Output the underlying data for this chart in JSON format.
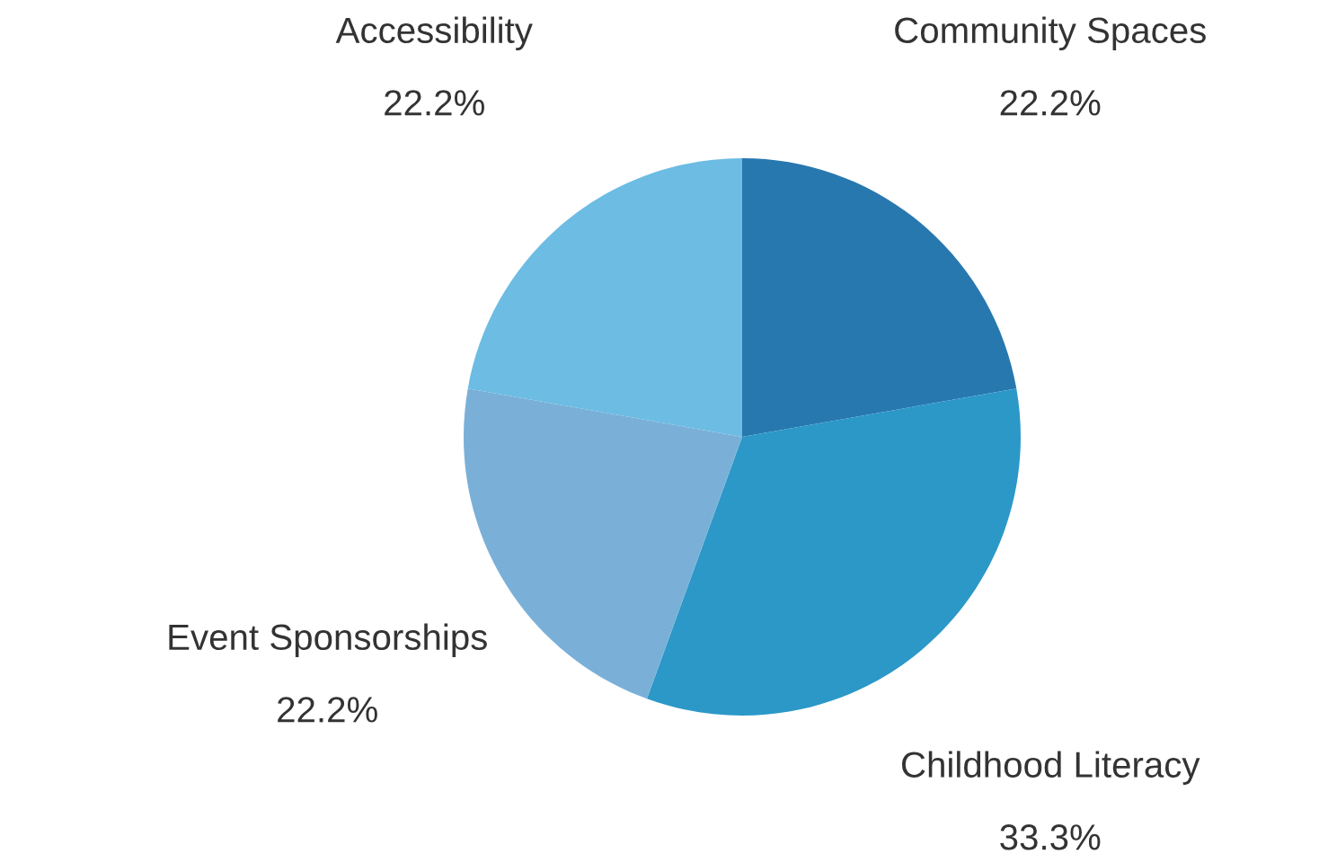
{
  "chart_data": {
    "type": "pie",
    "categories": [
      "Community Spaces",
      "Childhood Literacy",
      "Event Sponsorships",
      "Accessibility"
    ],
    "values": [
      22.2,
      33.3,
      22.2,
      22.2
    ],
    "value_labels": [
      "22.2%",
      "33.3%",
      "22.2%",
      "22.2%"
    ],
    "colors": [
      "#2878b0",
      "#2b98c8",
      "#7ab0d8",
      "#6cbce3"
    ],
    "legend": false
  }
}
